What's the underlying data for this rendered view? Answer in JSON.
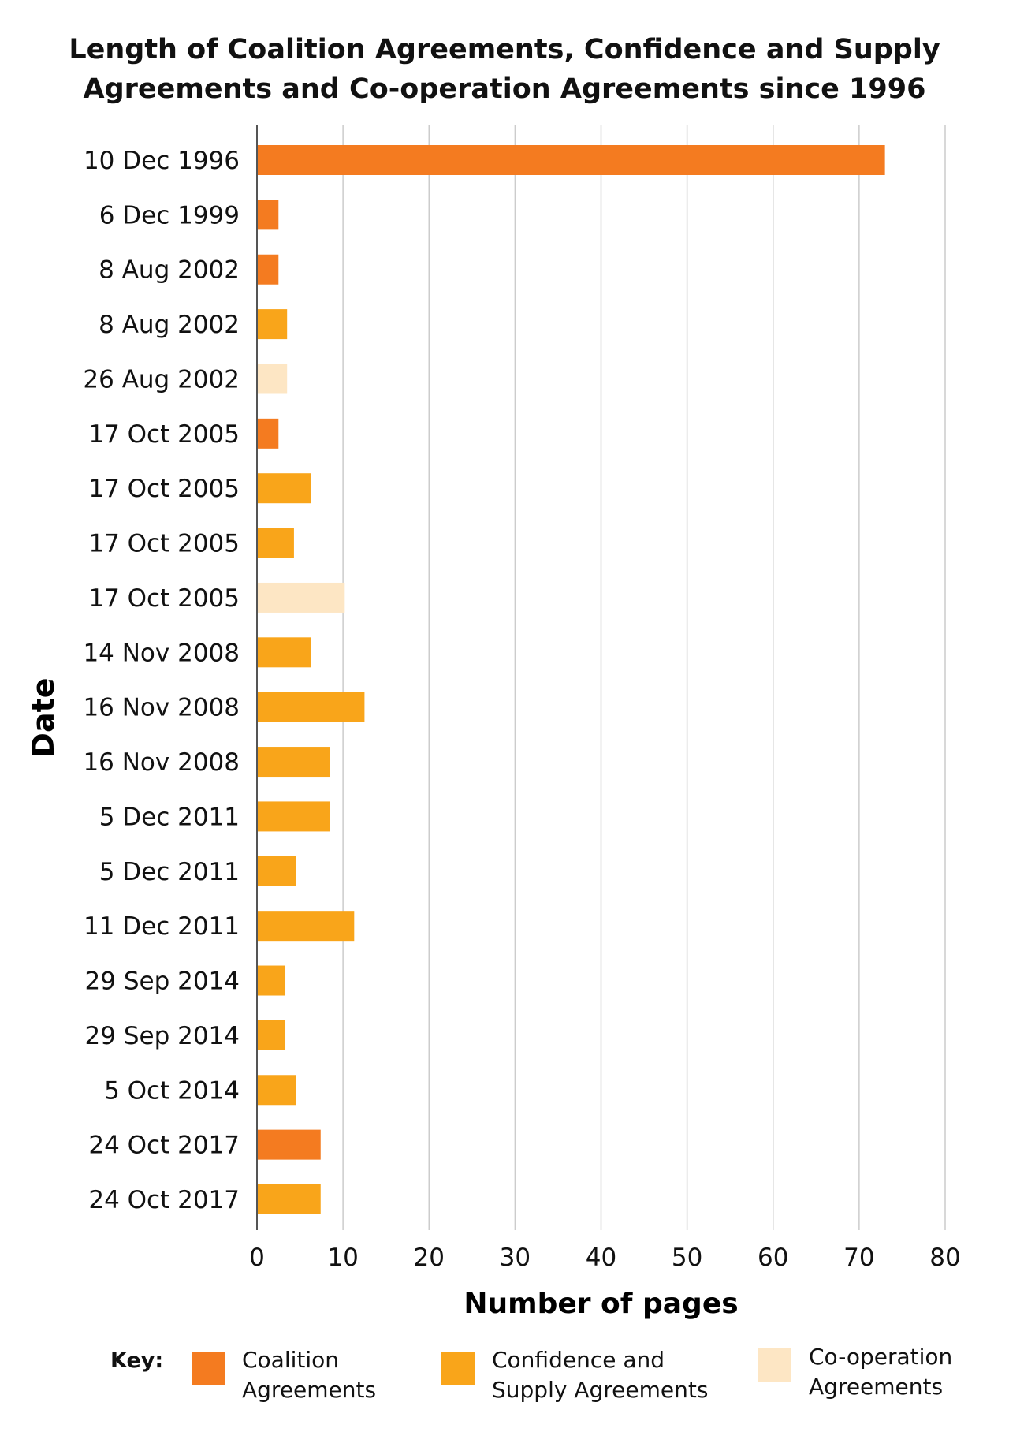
{
  "colors": {
    "coalition": "#F47B20",
    "confidence": "#F9A51A",
    "cooperation": "#FDE6C4",
    "grid": "#CCCCCC",
    "axis": "#555555"
  },
  "legend": {
    "key_label": "Key:",
    "items": [
      {
        "category": "coalition",
        "label_line1": "Coalition",
        "label_line2": "Agreements"
      },
      {
        "category": "confidence",
        "label_line1": "Confidence and",
        "label_line2": "Supply Agreements"
      },
      {
        "category": "cooperation",
        "label_line1": "Co-operation",
        "label_line2": "Agreements"
      }
    ]
  },
  "chart_data": {
    "type": "bar",
    "orientation": "horizontal",
    "title_line1": "Length of Coalition Agreements, Confidence and Supply",
    "title_line2": "Agreements and Co-operation Agreements since 1996",
    "xlabel": "Number of pages",
    "ylabel": "Date",
    "xlim": [
      0,
      80
    ],
    "xticks": [
      0,
      10,
      20,
      30,
      40,
      50,
      60,
      70,
      80
    ],
    "grid": true,
    "legend_position": "bottom",
    "bars": [
      {
        "date": "10 Dec 1996",
        "value": 73,
        "category": "coalition"
      },
      {
        "date": "6 Dec 1999",
        "value": 2.5,
        "category": "coalition"
      },
      {
        "date": "8 Aug 2002",
        "value": 2.5,
        "category": "coalition"
      },
      {
        "date": "8 Aug 2002",
        "value": 3.5,
        "category": "confidence"
      },
      {
        "date": "26 Aug 2002",
        "value": 3.5,
        "category": "cooperation"
      },
      {
        "date": "17 Oct 2005",
        "value": 2.5,
        "category": "coalition"
      },
      {
        "date": "17 Oct 2005",
        "value": 6.3,
        "category": "confidence"
      },
      {
        "date": "17 Oct 2005",
        "value": 4.3,
        "category": "confidence"
      },
      {
        "date": "17 Oct 2005",
        "value": 10.2,
        "category": "cooperation"
      },
      {
        "date": "14 Nov 2008",
        "value": 6.3,
        "category": "confidence"
      },
      {
        "date": "16 Nov 2008",
        "value": 12.5,
        "category": "confidence"
      },
      {
        "date": "16 Nov 2008",
        "value": 8.5,
        "category": "confidence"
      },
      {
        "date": "5 Dec 2011",
        "value": 8.5,
        "category": "confidence"
      },
      {
        "date": "5 Dec 2011",
        "value": 4.5,
        "category": "confidence"
      },
      {
        "date": "11 Dec 2011",
        "value": 11.3,
        "category": "confidence"
      },
      {
        "date": "29 Sep 2014",
        "value": 3.3,
        "category": "confidence"
      },
      {
        "date": "29 Sep 2014",
        "value": 3.3,
        "category": "confidence"
      },
      {
        "date": "5 Oct 2014",
        "value": 4.5,
        "category": "confidence"
      },
      {
        "date": "24 Oct 2017",
        "value": 7.4,
        "category": "coalition"
      },
      {
        "date": "24 Oct 2017",
        "value": 7.4,
        "category": "confidence"
      }
    ]
  }
}
